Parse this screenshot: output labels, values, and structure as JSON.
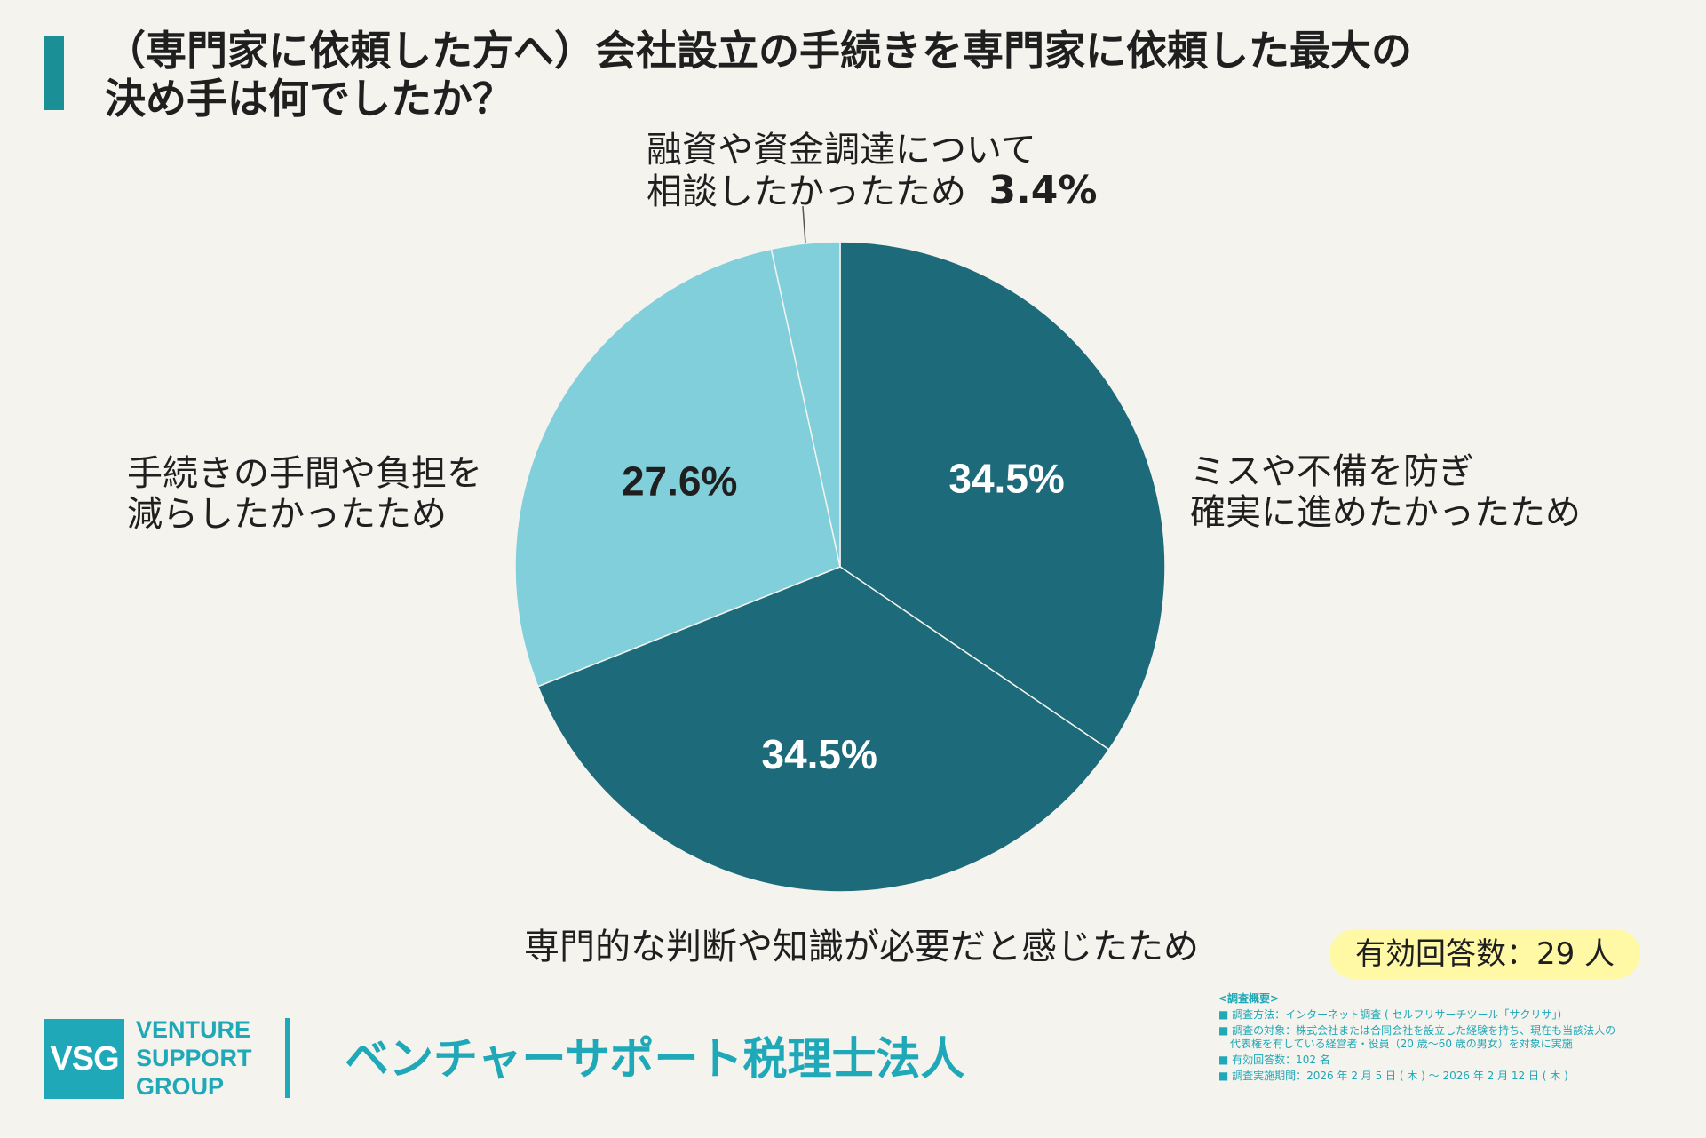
{
  "title": {
    "line1": "（専門家に依頼した方へ）会社設立の手続きを専門家に依頼した最大の",
    "line2": "決め手は何でしたか？"
  },
  "colors": {
    "accent": "#1a8f96",
    "dark_slice": "#1d6b7a",
    "light_slice": "#80cfdb",
    "brand": "#1fa8b7",
    "badge_bg": "#fff9a6",
    "background": "#f4f3ee"
  },
  "chart_data": {
    "type": "pie",
    "title": "（専門家に依頼した方へ）会社設立の手続きを専門家に依頼した最大の決め手は何でしたか？",
    "slices": [
      {
        "label_lines": [
          "ミスや不備を防ぎ",
          "確実に進めたかったため"
        ],
        "value": 34.5,
        "display": "34.5%",
        "color": "#1d6b7a"
      },
      {
        "label_lines": [
          "専門的な判断や知識が必要だと感じたため"
        ],
        "value": 34.5,
        "display": "34.5%",
        "color": "#1d6b7a"
      },
      {
        "label_lines": [
          "手続きの手間や負担を",
          "減らしたかったため"
        ],
        "value": 27.6,
        "display": "27.6%",
        "color": "#80cfdb"
      },
      {
        "label_lines": [
          "融資や資金調達について",
          "相談したかったため"
        ],
        "value": 3.4,
        "display": "3.4%",
        "color": "#80cfdb"
      }
    ]
  },
  "responses_badge": "有効回答数：29 人",
  "logo": {
    "mark": "VSG",
    "words": [
      "VENTURE",
      "SUPPORT",
      "GROUP"
    ],
    "company": "ベンチャーサポート税理士法人"
  },
  "notes": {
    "heading": "<調査概要>",
    "items": [
      "調査方法：インターネット調査 ( セルフリサーチツール「サクリサ」)",
      "調査の対象：株式会社または合同会社を設立した経験を持ち、現在も当該法人の",
      "有効回答数：102 名",
      "調査実施期間：2026 年 2 月 5 日 ( 木 ) ～ 2026 年 2 月 12 日 ( 木 )"
    ],
    "item2_cont": "代表権を有している経営者・役員（20 歳～60 歳の男女）を対象に実施"
  }
}
